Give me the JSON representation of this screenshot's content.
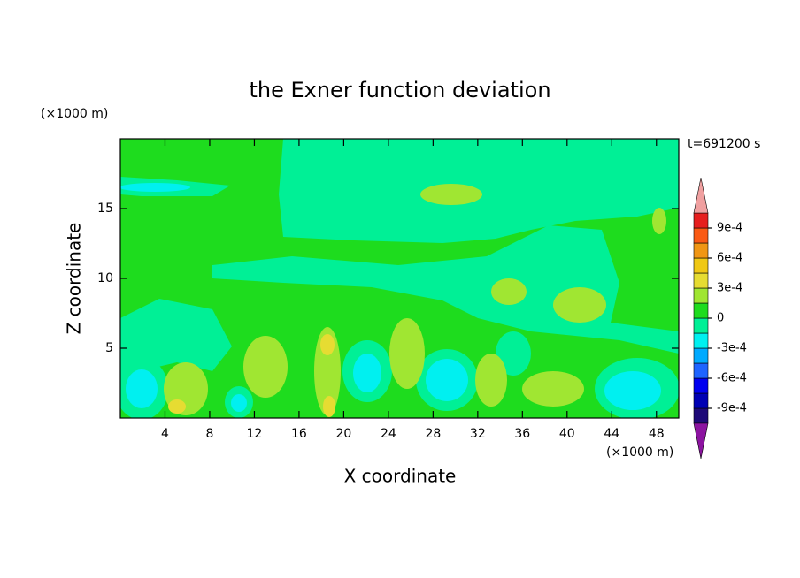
{
  "chart_data": {
    "type": "contour",
    "title": "the Exner function deviation",
    "subtitle": "t=691200 s",
    "x_label": "X coordinate",
    "y_label": "Z coordinate",
    "x_unit": "(×1000 m)",
    "y_unit": "(×1000 m)",
    "xlim": [
      0,
      50
    ],
    "ylim": [
      0,
      20
    ],
    "xticks": [
      4,
      8,
      12,
      16,
      20,
      24,
      28,
      32,
      36,
      40,
      44,
      48
    ],
    "yticks": [
      5,
      10,
      15
    ],
    "colorbar": {
      "levels": [
        -0.00105,
        -0.0009,
        -0.00075,
        -0.0006,
        -0.00045,
        -0.0003,
        -0.00015,
        0,
        0.00015,
        0.0003,
        0.00045,
        0.0006,
        0.00075,
        0.0009,
        0.00105
      ],
      "colors": [
        "#1e0a78",
        "#0000b4",
        "#0000f0",
        "#1e64ff",
        "#00aaff",
        "#00f0f0",
        "#00f096",
        "#1edc1e",
        "#a0e632",
        "#e6dc32",
        "#f0c814",
        "#f09614",
        "#fa5a14",
        "#e61e1e"
      ],
      "extend_colors": [
        "#8c14a0",
        "#f0a0a0"
      ],
      "ticks": [
        {
          "value": -0.0009,
          "label": "-9e-4"
        },
        {
          "value": -0.0006,
          "label": "-6e-4"
        },
        {
          "value": -0.0003,
          "label": "-3e-4"
        },
        0,
        {
          "value": 0.0003,
          "label": "3e-4"
        },
        {
          "value": 0.0006,
          "label": "6e-4"
        },
        {
          "value": 0.0009,
          "label": "9e-4"
        }
      ]
    }
  }
}
